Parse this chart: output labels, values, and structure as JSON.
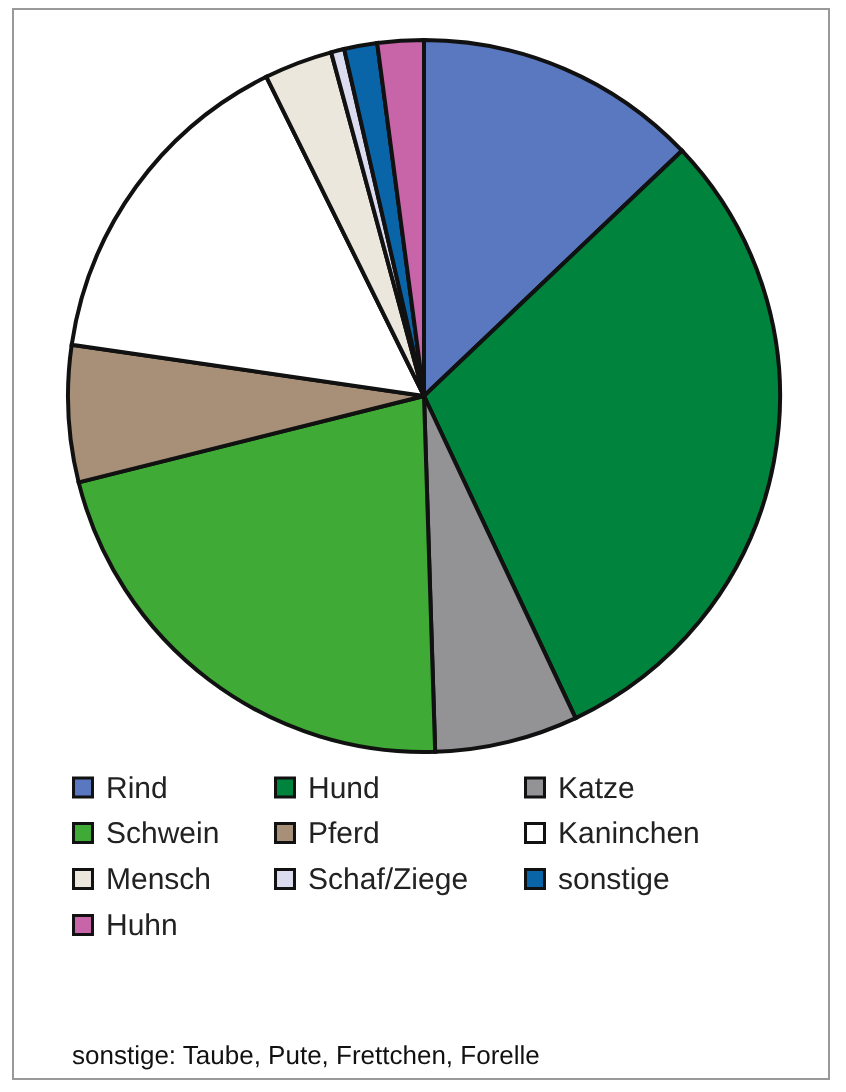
{
  "chart_data": {
    "type": "pie",
    "categories": [
      "Rind",
      "Hund",
      "Katze",
      "Schwein",
      "Pferd",
      "Kaninchen",
      "Mensch",
      "Schaf/Ziege",
      "sonstige",
      "Huhn"
    ],
    "values": [
      12.9,
      30.1,
      6.5,
      21.6,
      6.2,
      15.4,
      3.1,
      0.6,
      1.5,
      2.1
    ],
    "colors": [
      "#5a78c0",
      "#00843d",
      "#939396",
      "#3faa35",
      "#a89078",
      "#ffffff",
      "#ece7dc",
      "#dcdcf0",
      "#0a64a8",
      "#c864a8"
    ],
    "legend": "bottom",
    "annotations": [
      "sonstige: Taube, Pute, Frettchen, Forelle"
    ]
  }
}
